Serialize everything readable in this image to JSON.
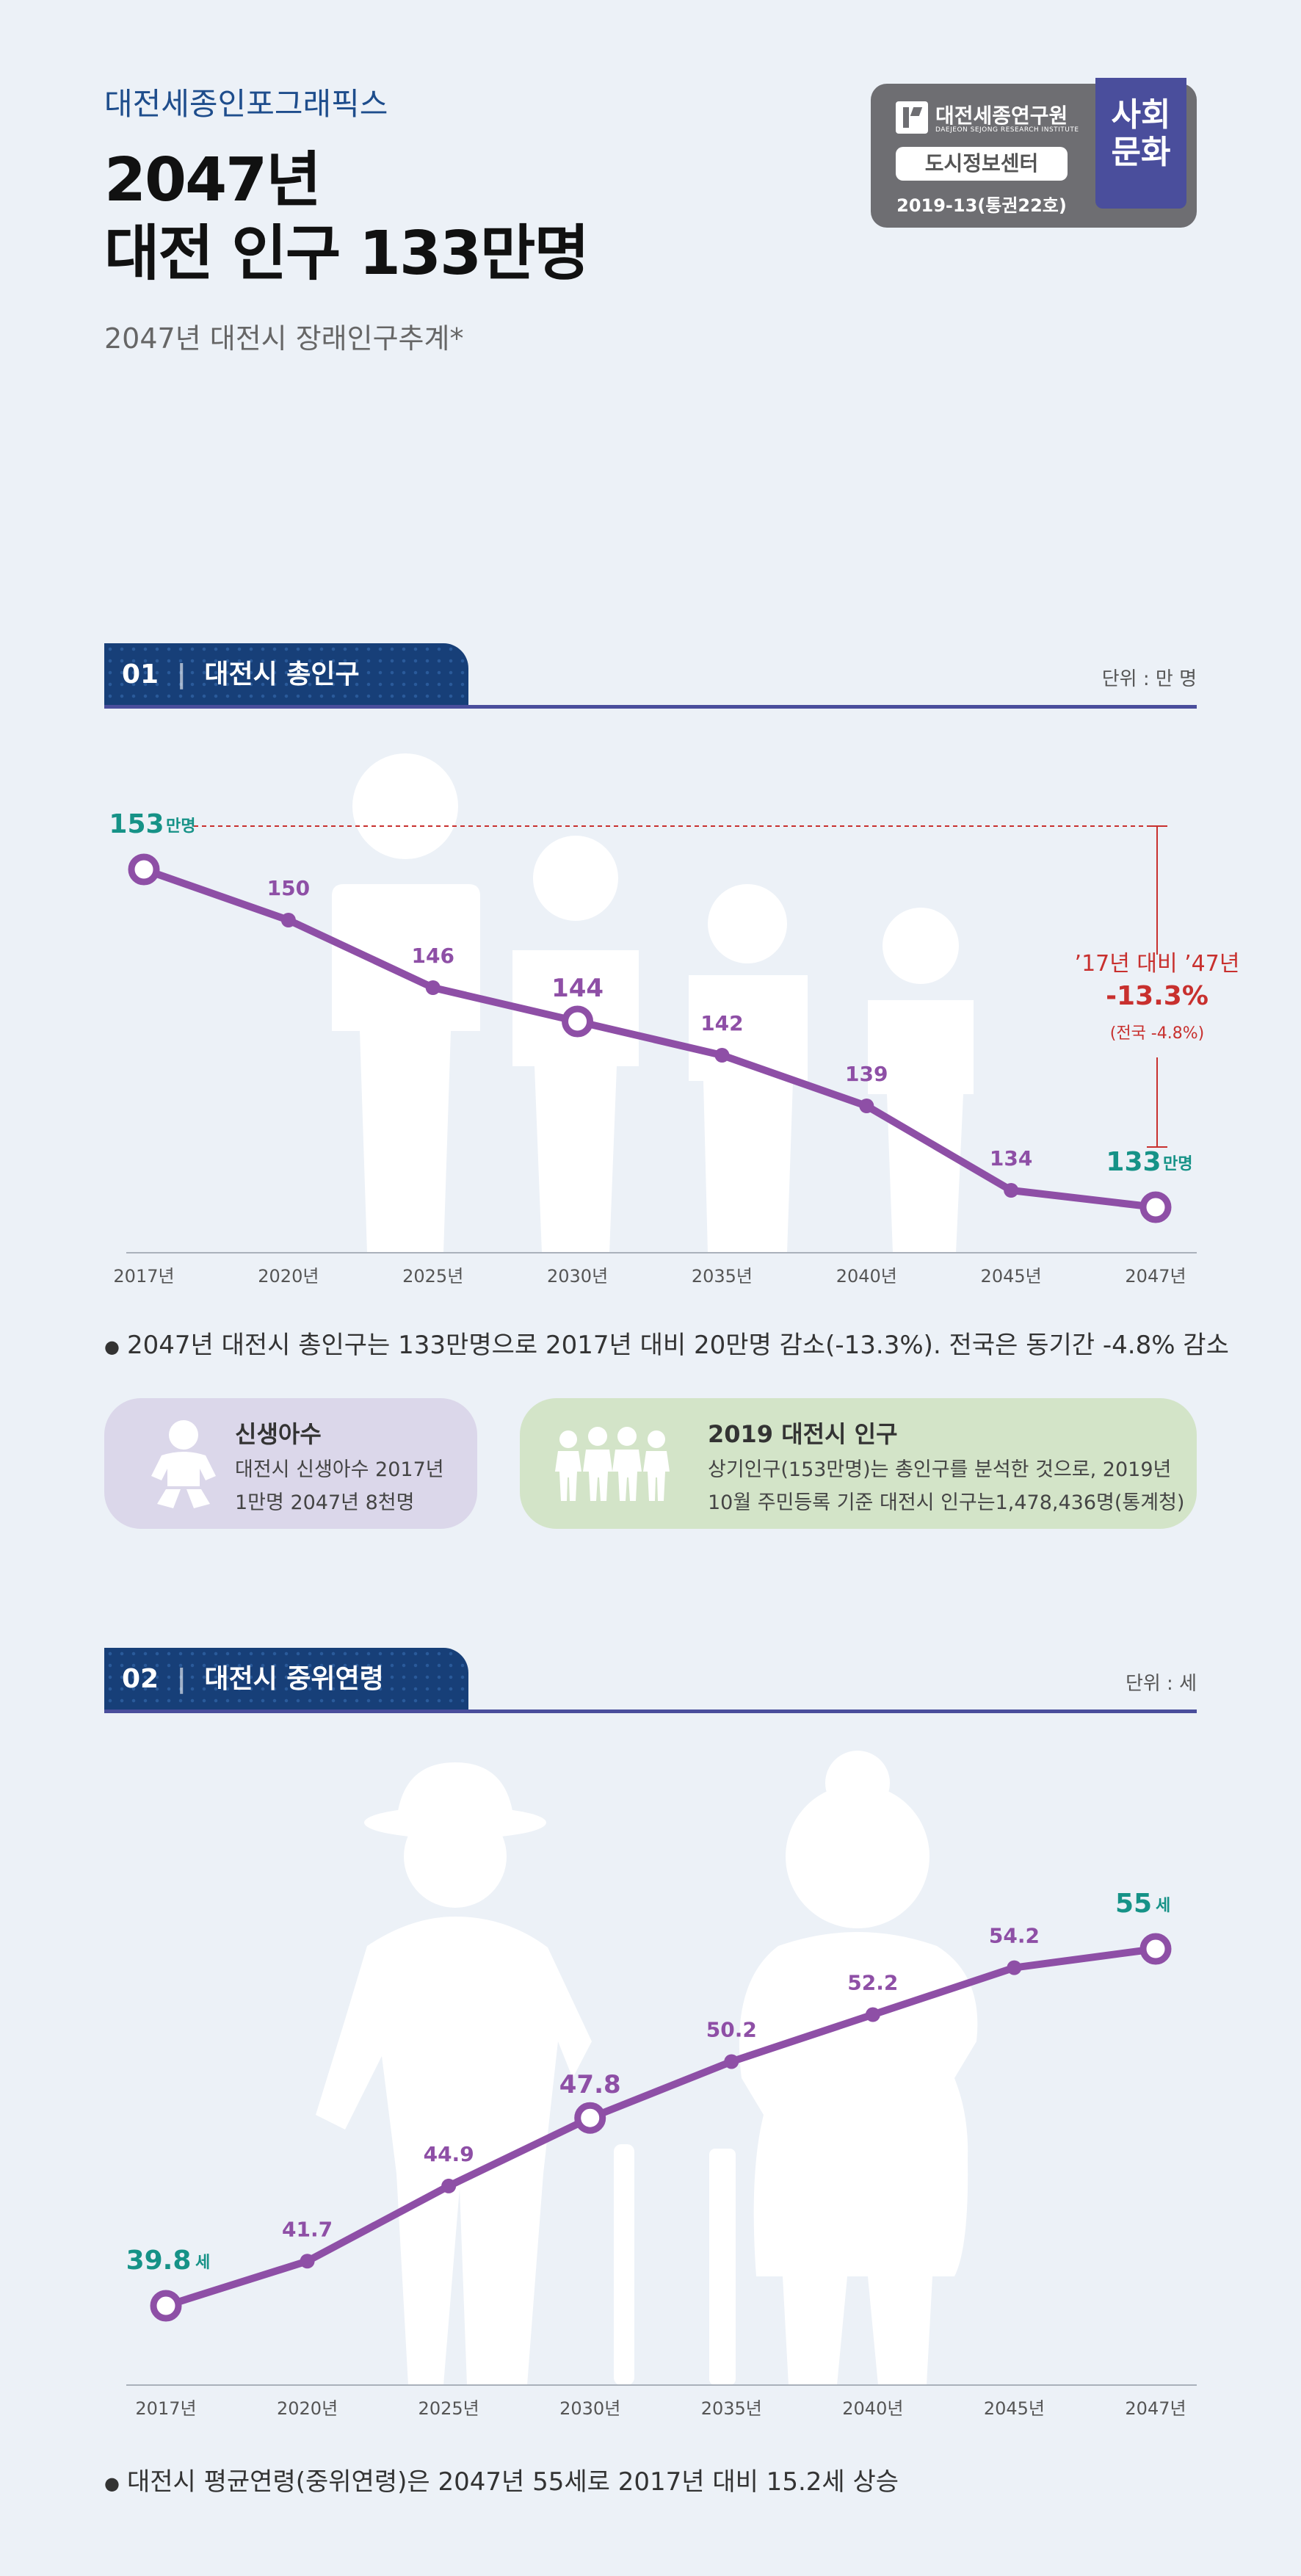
{
  "header": {
    "series_label": "대전세종인포그래픽스",
    "title_line1": "2047년",
    "title_line2": "대전 인구 133만명",
    "subtitle": "2047년 대전시 장래인구추계*"
  },
  "logo": {
    "name": "대전세종연구원",
    "name_en": "DAEJEON SEJONG RESEARCH INSTITUTE",
    "center": "도시정보센터",
    "issue": "2019-13(통권22호)",
    "category_line1": "사회",
    "category_line2": "문화"
  },
  "colors": {
    "accent": "#8E4FA6",
    "teal": "#169287",
    "navy": "#173F78",
    "red": "#C8302E",
    "background": "#ECF1F7"
  },
  "section1": {
    "number": "01",
    "title": "대전시 총인구",
    "unit": "단위 : 만 명",
    "start_unit": "만명",
    "end_unit": "만명",
    "annotation_period": "’17년 대비 ’47년",
    "annotation_change": "-13.3%",
    "annotation_national": "(전국 -4.8%)",
    "note": "2047년 대전시 총인구는 133만명으로 2017년 대비 20만명 감소(-13.3%). 전국은 동기간 -4.8% 감소"
  },
  "cards": [
    {
      "icon": "baby-icon",
      "title": "신생아수",
      "line1": "대전시 신생아수 2017년",
      "line2": "1만명 2047년 8천명"
    },
    {
      "icon": "people-icon",
      "title": "2019 대전시 인구",
      "line1": "상기인구(153만명)는 총인구를 분석한 것으로, 2019년",
      "line2": "10월 주민등록 기준 대전시 인구는1,478,436명(통계청)"
    }
  ],
  "section2": {
    "number": "02",
    "title": "대전시 중위연령",
    "unit": "단위 : 세",
    "start_unit": "세",
    "end_unit": "세",
    "note": "대전시 평균연령(중위연령)은 2047년 55세로 2017년 대비 15.2세 상승"
  },
  "chart_data": [
    {
      "type": "line",
      "title": "대전시 총인구",
      "ylabel": "만 명",
      "categories": [
        "2017년",
        "2020년",
        "2025년",
        "2030년",
        "2035년",
        "2040년",
        "2045년",
        "2047년"
      ],
      "series": [
        {
          "name": "대전시 총인구",
          "values": [
            153,
            150,
            146,
            144,
            142,
            139,
            134,
            133
          ]
        }
      ],
      "grid": false
    },
    {
      "type": "line",
      "title": "대전시 중위연령",
      "ylabel": "세",
      "categories": [
        "2017년",
        "2020년",
        "2025년",
        "2030년",
        "2035년",
        "2040년",
        "2045년",
        "2047년"
      ],
      "series": [
        {
          "name": "대전시 중위연령",
          "values": [
            39.8,
            41.7,
            44.9,
            47.8,
            50.2,
            52.2,
            54.2,
            55.0
          ]
        }
      ],
      "grid": false
    }
  ]
}
